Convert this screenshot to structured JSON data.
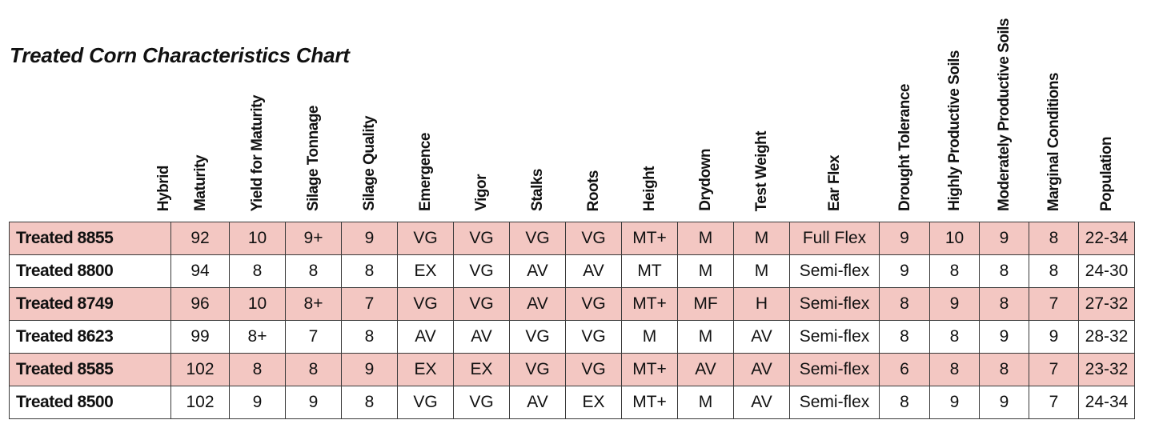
{
  "title": "Treated Corn Characteristics Chart",
  "columns": [
    "Hybrid",
    "Maturity",
    "Yield for Maturity",
    "Silage Tonnage",
    "Silage Quality",
    "Emergence",
    "Vigor",
    "Stalks",
    "Roots",
    "Height",
    "Drydown",
    "Test Weight",
    "Ear Flex",
    "Drought Tolerance",
    "Highly Productive Soils",
    "Moderately Productive Soils",
    "Marginal Conditions",
    "Population"
  ],
  "rows": [
    [
      "Treated 8855",
      "92",
      "10",
      "9+",
      "9",
      "VG",
      "VG",
      "VG",
      "VG",
      "MT+",
      "M",
      "M",
      "Full Flex",
      "9",
      "10",
      "9",
      "8",
      "22-34"
    ],
    [
      "Treated 8800",
      "94",
      "8",
      "8",
      "8",
      "EX",
      "VG",
      "AV",
      "AV",
      "MT",
      "M",
      "M",
      "Semi-flex",
      "9",
      "8",
      "8",
      "8",
      "24-30"
    ],
    [
      "Treated 8749",
      "96",
      "10",
      "8+",
      "7",
      "VG",
      "VG",
      "AV",
      "VG",
      "MT+",
      "MF",
      "H",
      "Semi-flex",
      "8",
      "9",
      "8",
      "7",
      "27-32"
    ],
    [
      "Treated 8623",
      "99",
      "8+",
      "7",
      "8",
      "AV",
      "AV",
      "VG",
      "VG",
      "M",
      "M",
      "AV",
      "Semi-flex",
      "8",
      "8",
      "9",
      "9",
      "28-32"
    ],
    [
      "Treated 8585",
      "102",
      "8",
      "8",
      "9",
      "EX",
      "EX",
      "VG",
      "VG",
      "MT+",
      "AV",
      "AV",
      "Semi-flex",
      "6",
      "8",
      "8",
      "7",
      "23-32"
    ],
    [
      "Treated 8500",
      "102",
      "9",
      "9",
      "8",
      "VG",
      "VG",
      "AV",
      "EX",
      "MT+",
      "M",
      "AV",
      "Semi-flex",
      "8",
      "9",
      "9",
      "7",
      "24-34"
    ]
  ],
  "colors": {
    "shaded_row": "#f3c7c2",
    "border": "#3a3a3a"
  }
}
